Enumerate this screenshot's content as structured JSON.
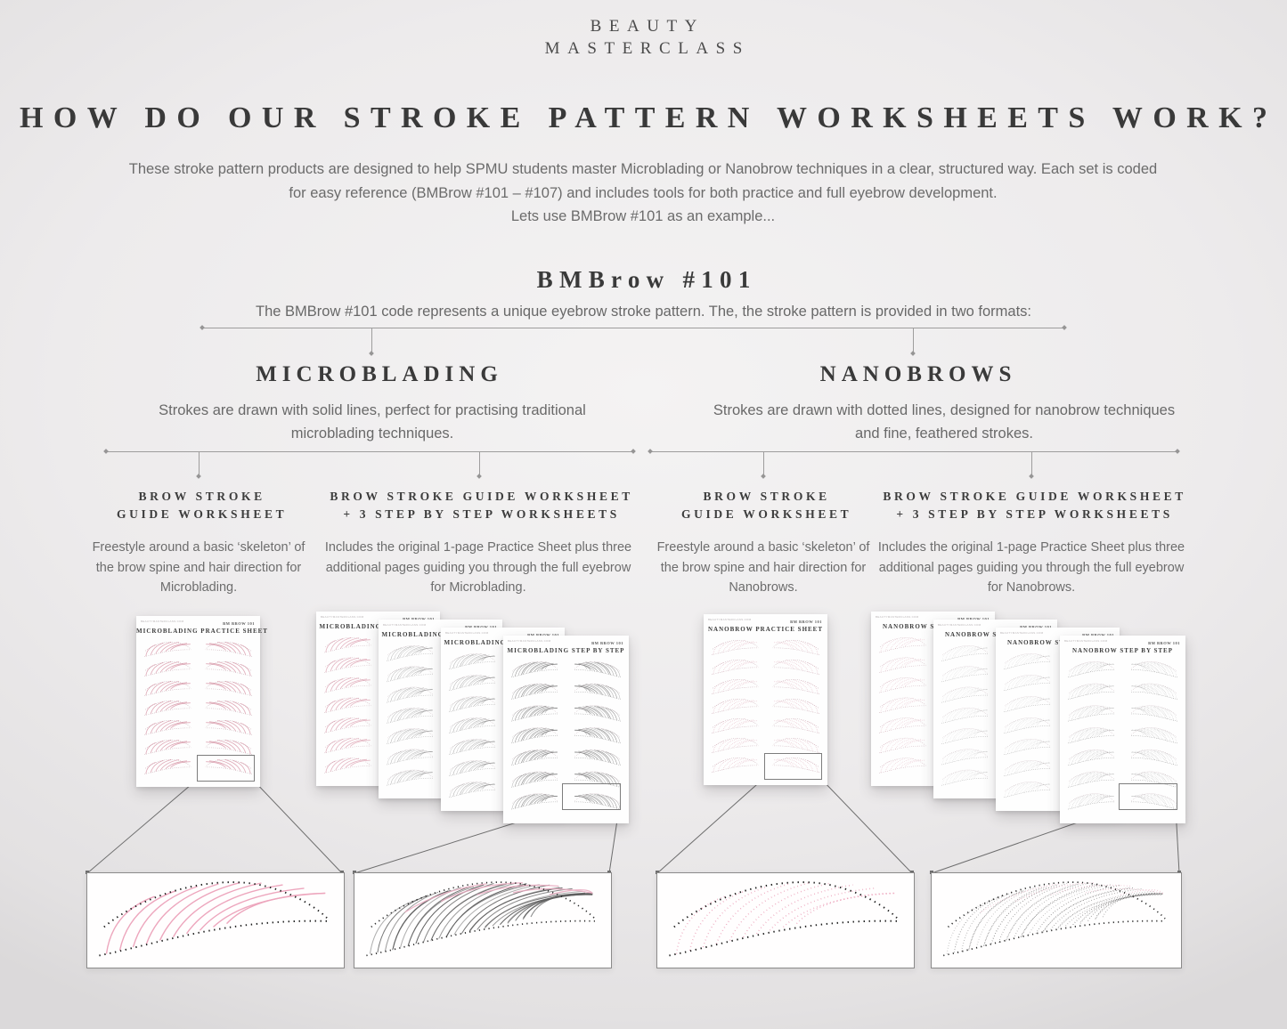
{
  "brand": {
    "line1": "BEAUTY",
    "line2": "MASTERCLASS"
  },
  "title": "HOW DO OUR STROKE PATTERN WORKSHEETS WORK?",
  "intro": {
    "paragraph": "These stroke pattern products are designed to help SPMU students master Microblading or Nanobrow techniques in a clear, structured way. Each set is coded for easy reference (BMBrow #101 – #107) and includes tools for both practice and full eyebrow development.",
    "example": "Lets use BMBrow #101 as an example..."
  },
  "code_section": {
    "title": "BMBrow #101",
    "subtitle": "The BMBrow #101 code represents a unique eyebrow stroke pattern. The, the stroke pattern is provided in two formats:"
  },
  "branches": [
    {
      "title": "MICROBLADING",
      "description": "Strokes are drawn with solid lines, perfect for practising traditional microblading techniques.",
      "columns": [
        {
          "title_line1": "BROW STROKE",
          "title_line2": "GUIDE WORKSHEET",
          "description": "Freestyle around a basic ‘skeleton’ of the brow spine and hair direction for Microblading.",
          "sheet_title": "MICROBLADING PRACTICE SHEET"
        },
        {
          "title_line1": "BROW STROKE GUIDE WORKSHEET",
          "title_line2": "+ 3 STEP BY STEP WORKSHEETS",
          "description": "Includes the original 1-page Practice Sheet plus three additional pages guiding you through the full eyebrow for Microblading.",
          "sheet_title": "MICROBLADING STEP BY STEP"
        }
      ]
    },
    {
      "title": "NANOBROWS",
      "description": "Strokes are drawn with dotted lines, designed for nanobrow techniques and fine, feathered strokes.",
      "columns": [
        {
          "title_line1": "BROW STROKE",
          "title_line2": "GUIDE WORKSHEET",
          "description": "Freestyle around a basic ‘skeleton’ of the brow spine and hair direction for Nanobrows.",
          "sheet_title": "NANOBROW PRACTICE SHEET"
        },
        {
          "title_line1": "BROW STROKE GUIDE WORKSHEET",
          "title_line2": "+ 3 STEP BY STEP WORKSHEETS",
          "description": "Includes the original 1-page Practice Sheet plus three additional pages guiding you through the full eyebrow for Nanobrows.",
          "sheet_title": "NANOBROW STEP BY STEP"
        }
      ]
    }
  ],
  "sheet_meta": {
    "code": "BM BROW 101",
    "url": "BEAUTYMASTERCLASS.COM"
  },
  "artwork": {
    "pink": "#eda6bd",
    "pink_soft": "#dfa9b7",
    "pink_deep": "#b08b97",
    "ink": "#1e1e1e",
    "gray_dark": "#5e5e5e",
    "gray_mid": "#8f8f8f",
    "line": "#6e6e6e",
    "paper": "#ffffff"
  }
}
